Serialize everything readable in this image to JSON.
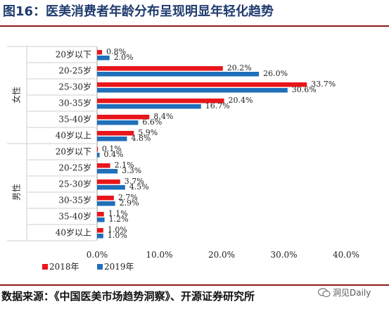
{
  "title": "图16：医美消费者年龄分布呈现明显年轻化趋势",
  "source": "数据来源：《中国医美市场趋势洞察》、开源证券研究所",
  "watermark": "洞见Daily",
  "chart_data": {
    "type": "bar",
    "orientation": "horizontal",
    "groups": [
      {
        "name": "女性",
        "categories": [
          "20岁以下",
          "20-25岁",
          "25-30岁",
          "30-35岁",
          "35-40岁",
          "40岁以上"
        ]
      },
      {
        "name": "男性",
        "categories": [
          "20岁以下",
          "20-25岁",
          "25-30岁",
          "30-35岁",
          "35-40岁",
          "40岁以上"
        ]
      }
    ],
    "series": [
      {
        "name": "2018年",
        "color": "#e8161b",
        "values": [
          0.8,
          20.2,
          33.7,
          20.4,
          8.4,
          5.9,
          0.1,
          2.1,
          3.7,
          2.7,
          1.1,
          1.0
        ],
        "labels": [
          "0.8%",
          "20.2%",
          "33.7%",
          "20.4%",
          "8.4%",
          "5.9%",
          "0.1%",
          "2.1%",
          "3.7%",
          "2.7%",
          "1.1%",
          "1.0%"
        ]
      },
      {
        "name": "2019年",
        "color": "#1f6fba",
        "values": [
          2.0,
          26.0,
          30.6,
          16.7,
          6.6,
          4.8,
          0.4,
          3.3,
          4.5,
          2.9,
          1.2,
          1.0
        ],
        "labels": [
          "2.0%",
          "26.0%",
          "30.6%",
          "16.7%",
          "6.6%",
          "4.8%",
          "0.4%",
          "3.3%",
          "4.5%",
          "2.9%",
          "1.2%",
          "1.0%"
        ]
      }
    ],
    "xlim": [
      0,
      40
    ],
    "xticks": [
      "0.0%",
      "10.0%",
      "20.0%",
      "30.0%",
      "40.0%"
    ],
    "legend_position": "bottom-left"
  }
}
